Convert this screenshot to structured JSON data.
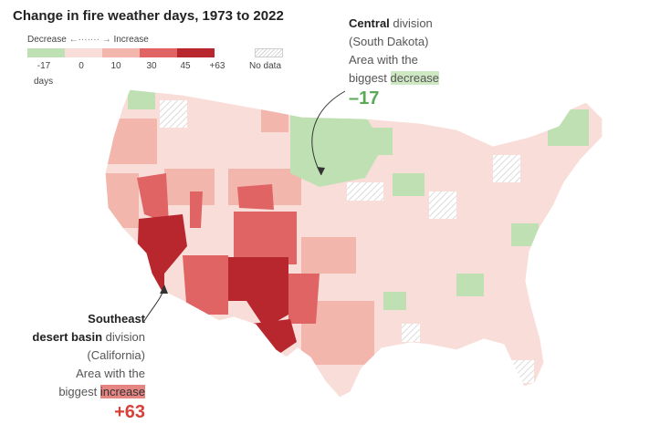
{
  "title": "Change in fire weather days, 1973 to 2022",
  "legend": {
    "decrease_label": "Decrease",
    "increase_label": "Increase",
    "arrow_left": "←·······",
    "arrow_right": "→",
    "bins": [
      {
        "label": "-17",
        "color": "#bfe0b3"
      },
      {
        "label": "0",
        "color": "#f8ddd8"
      },
      {
        "label": "10",
        "color": "#f2b6ad"
      },
      {
        "label": "30",
        "color": "#e06464"
      },
      {
        "label": "45",
        "color": "#b8262e"
      },
      {
        "label": "+63",
        "color": "#b8262e"
      }
    ],
    "unit": "days",
    "no_data_label": "No data"
  },
  "callouts": {
    "central": {
      "name": "Central",
      "word_division": "division",
      "state": "(South Dakota)",
      "line1": "Area with the",
      "line2": "biggest",
      "highlight": "decrease",
      "value": "–17"
    },
    "southeast": {
      "name_line1": "Southeast",
      "name_line2": "desert basin",
      "word_division": "division",
      "state": "(California)",
      "line1": "Area with the",
      "line2": "biggest",
      "highlight": "increase",
      "value": "+63"
    }
  },
  "colors": {
    "decrease": "#bfe0b3",
    "light_increase": "#f8ddd8",
    "mid_increase": "#f2b6ad",
    "high_increase": "#e06464",
    "max_increase": "#b8262e",
    "no_data": "#d2d2d2"
  }
}
